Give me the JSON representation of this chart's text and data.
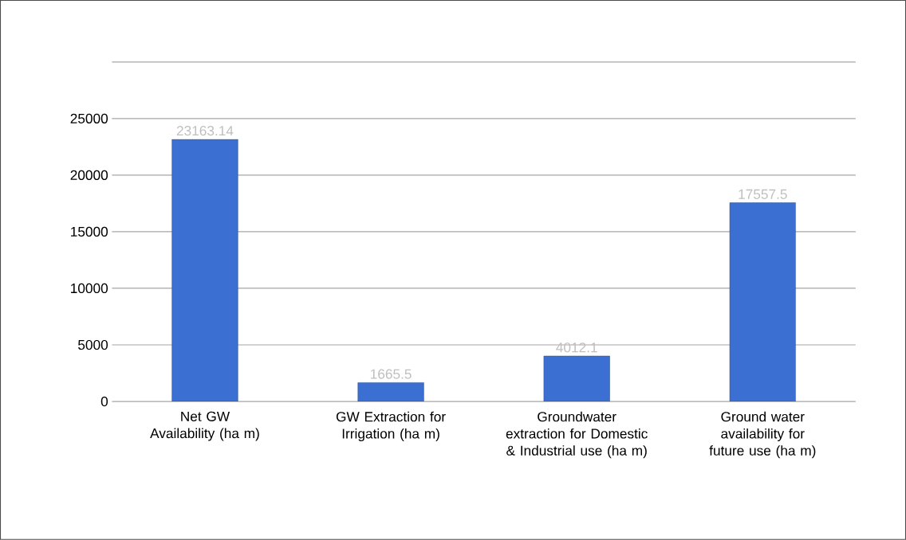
{
  "chart_data": {
    "type": "bar",
    "categories": [
      "Net GW Availability (ha m)",
      "GW Extraction for Irrigation (ha m)",
      "Groundwater extraction for Domestic & Industrial use (ha m)",
      "Ground water availability for future use (ha m)"
    ],
    "values": [
      23163.14,
      1665.5,
      4012.1,
      17557.5
    ],
    "color": "#3b6fd1",
    "ylim": [
      0,
      30000
    ],
    "yticks": [
      0,
      5000,
      10000,
      15000,
      20000,
      25000,
      {
        "value": 30000,
        "label": null
      }
    ],
    "grid": "y",
    "data_labels": true
  }
}
